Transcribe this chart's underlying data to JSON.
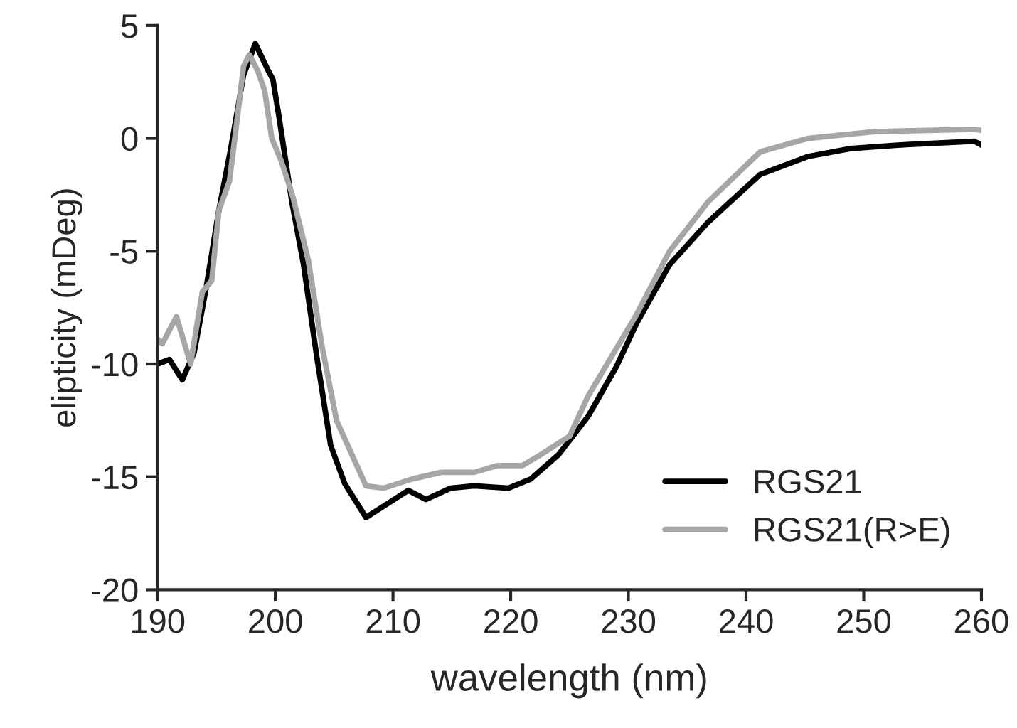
{
  "chart_data": {
    "type": "line",
    "xlabel": "wavelength (nm)",
    "ylabel": "elipticity (mDeg)",
    "xlim": [
      190,
      260
    ],
    "xticks": [
      190,
      200,
      210,
      220,
      230,
      240,
      250,
      260
    ],
    "ylim": [
      -20,
      5
    ],
    "yticks": [
      -20,
      -15,
      -10,
      -5,
      0,
      5
    ],
    "grid": false,
    "legend": "bottom right",
    "marker": "none",
    "line_style": "solid",
    "series": [
      {
        "name": "RGS21",
        "color": "#000000",
        "x": [
          190,
          191.0,
          192.1,
          193.1,
          194.1,
          195.2,
          196.2,
          197.3,
          198.3,
          199.4,
          199.8,
          200.3,
          201.4,
          202.4,
          203.5,
          204.7,
          205.9,
          207.7,
          209.2,
          211.3,
          212.8,
          214.9,
          216.9,
          219.8,
          221.7,
          224.1,
          226.6,
          229.0,
          230.7,
          233.5,
          236.8,
          241.2,
          245.3,
          248.9,
          252.9,
          259.4,
          260
        ],
        "values": [
          -10.0,
          -9.8,
          -10.7,
          -9.5,
          -6.7,
          -3.2,
          -0.5,
          2.8,
          4.2,
          3.0,
          2.6,
          1.0,
          -2.8,
          -5.6,
          -9.6,
          -13.6,
          -15.3,
          -16.8,
          -16.3,
          -15.6,
          -16.0,
          -15.5,
          -15.4,
          -15.5,
          -15.1,
          -14.0,
          -12.3,
          -10.1,
          -8.2,
          -5.6,
          -3.7,
          -1.6,
          -0.8,
          -0.45,
          -0.3,
          -0.13,
          -0.3
        ]
      },
      {
        "name": "RGS21(R>E)",
        "color": "#a6a6a6",
        "x": [
          190,
          190.4,
          191.6,
          192.8,
          193.8,
          194.6,
          195.2,
          196.1,
          196.7,
          197.3,
          197.8,
          198.5,
          199.1,
          199.7,
          200.5,
          201.5,
          202.8,
          204.0,
          205.2,
          207.7,
          209.2,
          211.6,
          214.1,
          216.9,
          218.9,
          221.0,
          222.6,
          225.0,
          226.6,
          229.0,
          230.7,
          233.5,
          236.8,
          241.2,
          245.3,
          250.9,
          259.4,
          260
        ],
        "values": [
          -8.9,
          -9.1,
          -7.9,
          -10.0,
          -6.8,
          -6.3,
          -3.2,
          -1.9,
          0.6,
          3.2,
          3.7,
          3.0,
          2.1,
          0.0,
          -1.0,
          -2.6,
          -5.4,
          -9.3,
          -12.5,
          -15.4,
          -15.5,
          -15.1,
          -14.8,
          -14.8,
          -14.5,
          -14.5,
          -14.0,
          -13.2,
          -11.4,
          -9.3,
          -7.8,
          -5.0,
          -2.8,
          -0.6,
          0.0,
          0.3,
          0.4,
          0.35
        ]
      }
    ]
  }
}
